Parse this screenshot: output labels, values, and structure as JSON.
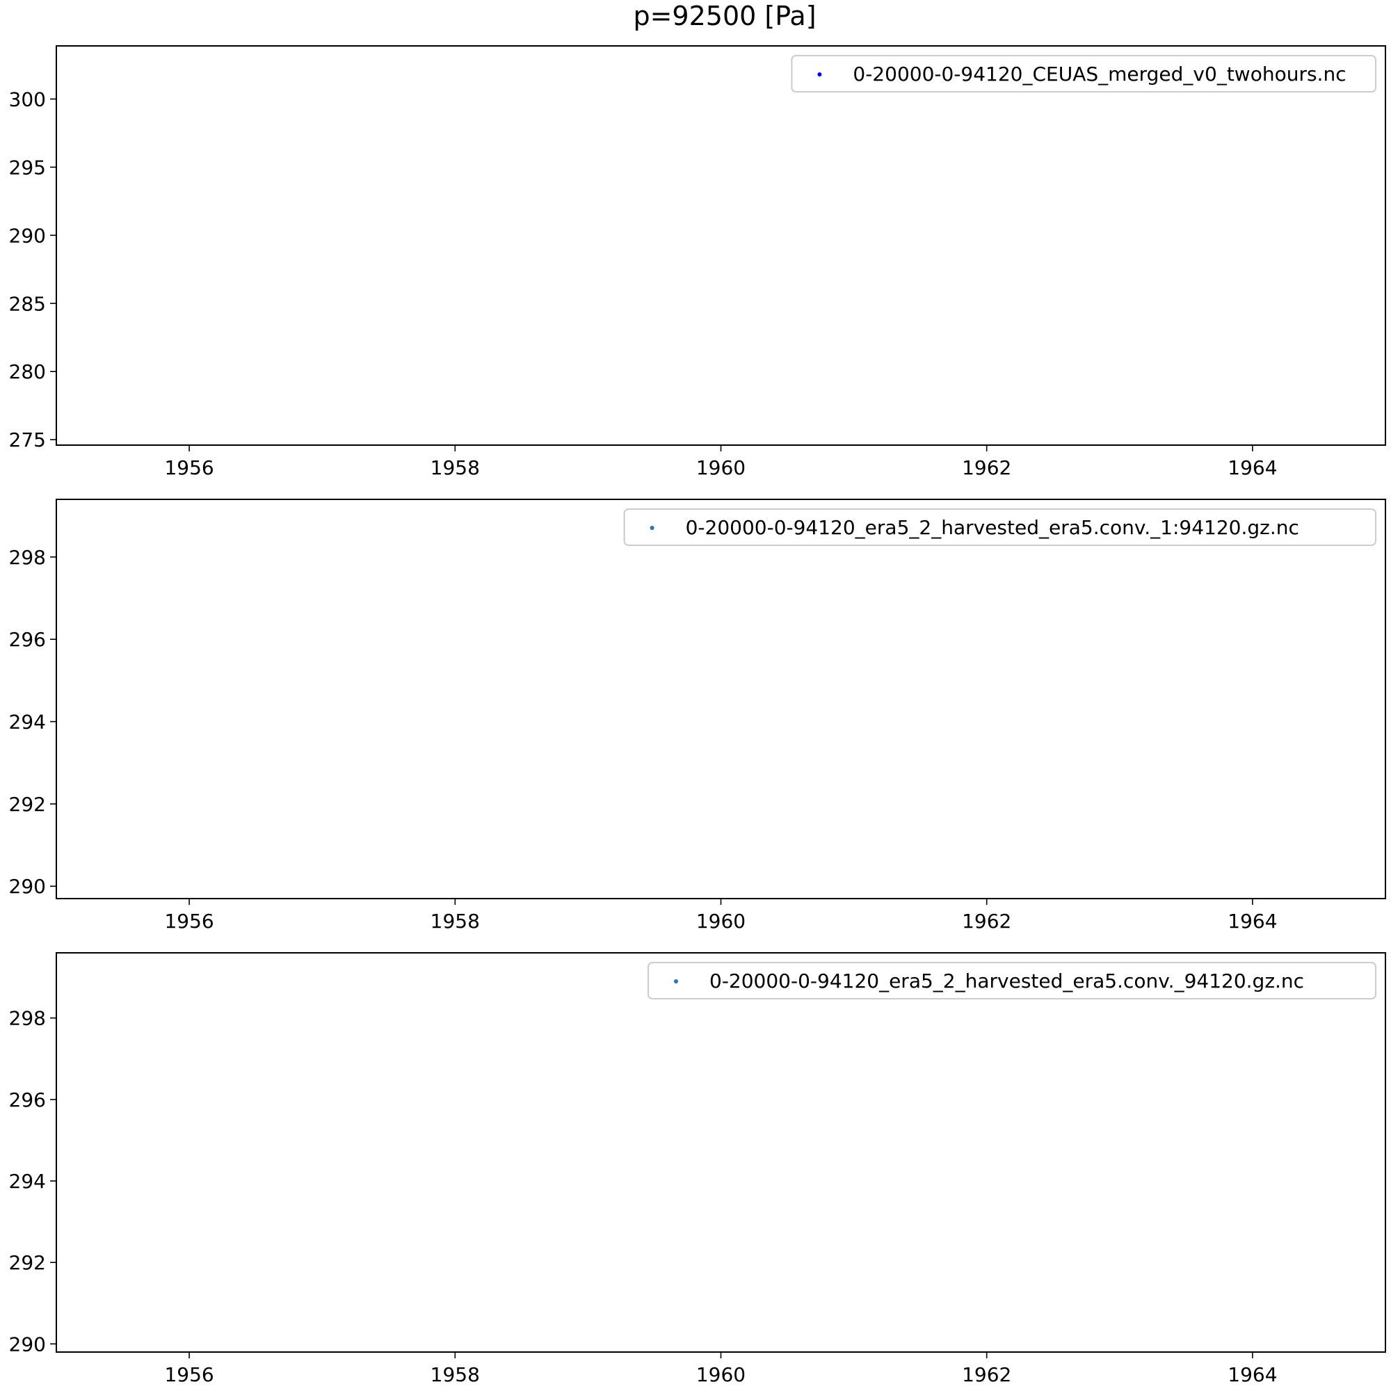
{
  "figure_title": "p=92500 [Pa]",
  "chart_data": [
    {
      "type": "scatter",
      "title": "",
      "xlabel": "",
      "ylabel": "",
      "xlim": [
        1955.0,
        1965.0
      ],
      "ylim": [
        274.6,
        303.9
      ],
      "xticks": [
        1956,
        1958,
        1960,
        1962,
        1964
      ],
      "xtick_labels": [
        "1956",
        "1958",
        "1960",
        "1962",
        "1964"
      ],
      "yticks": [
        275,
        280,
        285,
        290,
        295,
        300
      ],
      "ytick_labels": [
        "275",
        "280",
        "285",
        "290",
        "295",
        "300"
      ],
      "grid": false,
      "legend_position": "upper right",
      "series": [
        {
          "name": "0-20000-0-94120_CEUAS_merged_v0_twohours.nc",
          "color": "#0000ff",
          "x": [],
          "y": []
        }
      ]
    },
    {
      "type": "scatter",
      "title": "",
      "xlabel": "",
      "ylabel": "",
      "xlim": [
        1955.0,
        1965.0
      ],
      "ylim": [
        289.7,
        299.4
      ],
      "xticks": [
        1956,
        1958,
        1960,
        1962,
        1964
      ],
      "xtick_labels": [
        "1956",
        "1958",
        "1960",
        "1962",
        "1964"
      ],
      "yticks": [
        290,
        292,
        294,
        296,
        298
      ],
      "ytick_labels": [
        "290",
        "292",
        "294",
        "296",
        "298"
      ],
      "grid": false,
      "legend_position": "upper right",
      "series": [
        {
          "name": "0-20000-0-94120_era5_2_harvested_era5.conv._1:94120.gz.nc",
          "color": "#1f77b4",
          "x": [],
          "y": []
        }
      ]
    },
    {
      "type": "scatter",
      "title": "",
      "xlabel": "",
      "ylabel": "",
      "xlim": [
        1955.0,
        1965.0
      ],
      "ylim": [
        289.8,
        299.6
      ],
      "xticks": [
        1956,
        1958,
        1960,
        1962,
        1964
      ],
      "xtick_labels": [
        "1956",
        "1958",
        "1960",
        "1962",
        "1964"
      ],
      "yticks": [
        290,
        292,
        294,
        296,
        298
      ],
      "ytick_labels": [
        "290",
        "292",
        "294",
        "296",
        "298"
      ],
      "grid": false,
      "legend_position": "upper right",
      "series": [
        {
          "name": "0-20000-0-94120_era5_2_harvested_era5.conv._94120.gz.nc",
          "color": "#1f77b4",
          "x": [],
          "y": []
        }
      ]
    }
  ]
}
